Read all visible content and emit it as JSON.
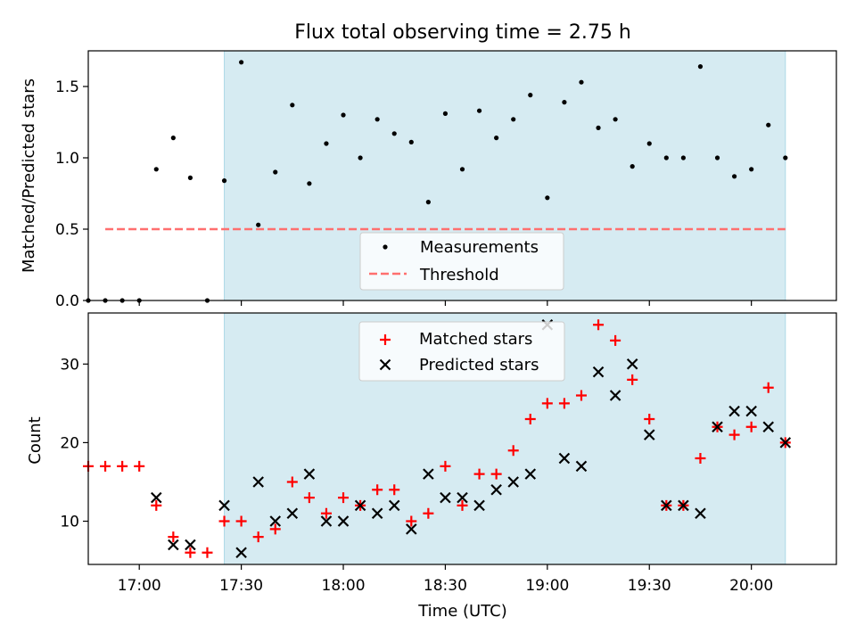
{
  "title": "Flux total observing time = 2.75 h",
  "colors": {
    "shade": "#ADD8E6",
    "threshold": "#FF6F6F",
    "matched": "#FF0000",
    "predicted": "#000000",
    "measurement": "#000000"
  },
  "chart_data": [
    {
      "type": "scatter",
      "ylabel": "Matched/Predicted stars",
      "ylim": [
        0,
        1.75
      ],
      "yticks": [
        "0.0",
        "0.5",
        "1.0",
        "1.5"
      ],
      "xlim": [
        "16:45",
        "20:25"
      ],
      "shaded_interval": [
        "17:25",
        "20:10"
      ],
      "threshold": 0.5,
      "threshold_range": [
        "16:50",
        "20:10"
      ],
      "legend": {
        "position": "lower-center",
        "entries": [
          "Measurements",
          "Threshold"
        ]
      },
      "series": [
        {
          "name": "Measurements",
          "x": [
            "16:50",
            "16:55",
            "17:00",
            "17:05",
            "17:10",
            "17:15",
            "17:20",
            "17:25",
            "17:30",
            "17:35",
            "17:40",
            "17:45",
            "17:50",
            "17:55",
            "18:00",
            "18:05",
            "18:10",
            "18:15",
            "18:20",
            "18:25",
            "18:30",
            "18:35",
            "18:40",
            "18:45",
            "18:50",
            "18:55",
            "19:00",
            "19:05",
            "19:10",
            "19:15",
            "19:20",
            "19:25",
            "19:30",
            "19:35",
            "19:40",
            "19:45",
            "19:50",
            "19:55",
            "20:00",
            "20:05",
            "20:10"
          ],
          "y": [
            0.0,
            0.0,
            0.0,
            0.92,
            1.14,
            0.86,
            0.0,
            0.84,
            1.67,
            0.53,
            0.9,
            1.37,
            0.82,
            1.1,
            1.3,
            1.0,
            1.27,
            1.17,
            1.11,
            0.69,
            1.31,
            0.92,
            1.33,
            1.14,
            1.27,
            1.44,
            0.72,
            1.39,
            1.53,
            1.21,
            1.27,
            0.94,
            1.1,
            1.0,
            1.0,
            1.64,
            1.0,
            0.87,
            0.92,
            1.23,
            1.0
          ]
        }
      ],
      "extra_points": [
        {
          "x": "16:45",
          "y": 0.0
        }
      ]
    },
    {
      "type": "scatter",
      "ylabel": "Count",
      "xlabel": "Time (UTC)",
      "ylim": [
        4.5,
        36.5
      ],
      "yticks": [
        "10",
        "20",
        "30"
      ],
      "xticks": [
        "17:00",
        "17:30",
        "18:00",
        "18:30",
        "19:00",
        "19:30",
        "20:00"
      ],
      "shaded_interval": [
        "17:25",
        "20:10"
      ],
      "legend": {
        "position": "upper-center",
        "entries": [
          "Matched stars",
          "Predicted stars"
        ]
      },
      "series": [
        {
          "name": "Matched stars",
          "x": [
            "16:45",
            "16:50",
            "16:55",
            "17:00",
            "17:05",
            "17:10",
            "17:15",
            "17:20",
            "17:25",
            "17:30",
            "17:35",
            "17:40",
            "17:45",
            "17:50",
            "17:55",
            "18:00",
            "18:05",
            "18:10",
            "18:15",
            "18:20",
            "18:25",
            "18:30",
            "18:35",
            "18:40",
            "18:45",
            "18:50",
            "18:55",
            "19:00",
            "19:05",
            "19:10",
            "19:15",
            "19:20",
            "19:25",
            "19:30",
            "19:35",
            "19:40",
            "19:45",
            "19:50",
            "19:55",
            "20:00",
            "20:05",
            "20:10"
          ],
          "y": [
            17,
            17,
            17,
            17,
            12,
            8,
            6,
            6,
            10,
            10,
            8,
            9,
            15,
            13,
            11,
            13,
            12,
            14,
            14,
            10,
            11,
            17,
            12,
            16,
            16,
            19,
            23,
            25,
            25,
            26,
            35,
            33,
            28,
            23,
            12,
            12,
            18,
            22,
            21,
            22,
            27,
            20
          ]
        },
        {
          "name": "Predicted stars",
          "x": [
            "17:05",
            "17:10",
            "17:15",
            "17:25",
            "17:30",
            "17:35",
            "17:40",
            "17:45",
            "17:50",
            "17:55",
            "18:00",
            "18:05",
            "18:10",
            "18:15",
            "18:20",
            "18:25",
            "18:30",
            "18:35",
            "18:40",
            "18:45",
            "18:50",
            "18:55",
            "19:00",
            "19:05",
            "19:10",
            "19:15",
            "19:20",
            "19:25",
            "19:30",
            "19:35",
            "19:40",
            "19:45",
            "19:50",
            "19:55",
            "20:00",
            "20:05",
            "20:10"
          ],
          "y": [
            13,
            7,
            7,
            12,
            6,
            15,
            10,
            11,
            16,
            10,
            10,
            12,
            11,
            12,
            9,
            16,
            13,
            13,
            12,
            14,
            15,
            16,
            35,
            18,
            17,
            29,
            26,
            30,
            21,
            12,
            12,
            11,
            22,
            24,
            24,
            22,
            20
          ]
        }
      ]
    }
  ]
}
